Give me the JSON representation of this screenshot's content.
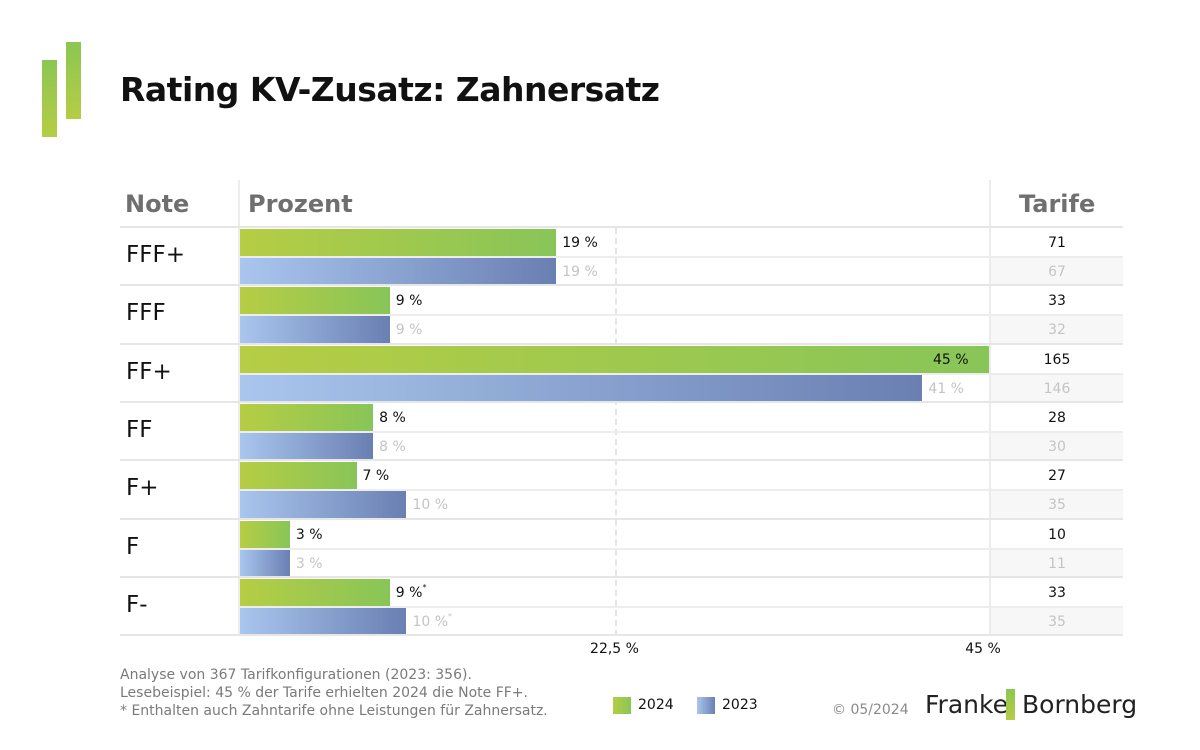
{
  "title": "Rating KV-Zusatz: Zahnersatz",
  "colors": {
    "series_2024": "#8cc652",
    "series_2023": "#6a7fb2"
  },
  "chart_data": {
    "type": "bar",
    "orientation": "horizontal",
    "title": "Rating KV-Zusatz: Zahnersatz",
    "column_headers": {
      "note": "Note",
      "percent": "Prozent",
      "tarife": "Tarife"
    },
    "categories": [
      "FFF+",
      "FFF",
      "FF+",
      "FF",
      "F+",
      "F",
      "F-"
    ],
    "series": [
      {
        "name": "2024",
        "values": [
          19,
          9,
          45,
          8,
          7,
          3,
          9
        ],
        "labels": [
          "19 %",
          "9 %",
          "45 %",
          "8 %",
          "7 %",
          "3 %",
          "9 %"
        ],
        "footnote_marks": [
          "",
          "",
          "",
          "",
          "",
          "",
          "*"
        ],
        "tarife": [
          71,
          33,
          165,
          28,
          27,
          10,
          33
        ]
      },
      {
        "name": "2023",
        "values": [
          19,
          9,
          41,
          8,
          10,
          3,
          10
        ],
        "labels": [
          "19 %",
          "9 %",
          "41 %",
          "8 %",
          "10 %",
          "3 %",
          "10 %"
        ],
        "footnote_marks": [
          "",
          "",
          "",
          "",
          "",
          "",
          "*"
        ],
        "tarife": [
          67,
          32,
          146,
          30,
          35,
          11,
          35
        ]
      }
    ],
    "xlim": [
      0,
      45
    ],
    "xticks": [
      22.5,
      45
    ],
    "xtick_labels": [
      "22,5 %",
      "45 %"
    ],
    "grid": "dashed vertical at 22,5 %",
    "legend": {
      "position": "bottom-center",
      "entries": [
        "2024",
        "2023"
      ]
    },
    "xlabel": "",
    "ylabel": ""
  },
  "footnotes": [
    "Analyse von 367 Tarifkonfigurationen (2023: 356).",
    "Lesebeispiel: 45 % der Tarife erhielten 2024 die Note FF+.",
    "* Enthalten auch Zahntarife ohne Leistungen für Zahnersatz."
  ],
  "legend": {
    "item_2024": "2024",
    "item_2023": "2023"
  },
  "copyright": "© 05/2024",
  "brand": {
    "left": "Franke",
    "right": "Bornberg"
  }
}
